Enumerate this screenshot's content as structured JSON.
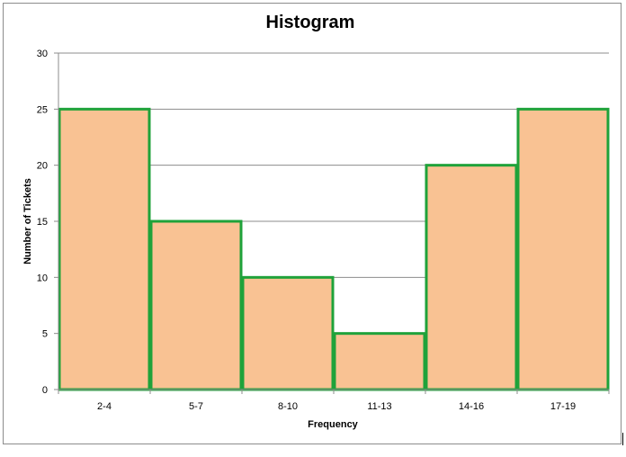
{
  "chart_data": {
    "type": "bar",
    "title": "Histogram",
    "xlabel": "Frequency",
    "ylabel": "Number of Tickets",
    "categories": [
      "2-4",
      "5-7",
      "8-10",
      "11-13",
      "14-16",
      "17-19"
    ],
    "values": [
      25,
      15,
      10,
      5,
      20,
      25
    ],
    "ylim": [
      0,
      30
    ],
    "yticks": [
      0,
      5,
      10,
      15,
      20,
      25,
      30
    ],
    "grid": true,
    "legend": "none",
    "colors": {
      "bar_fill": "#f9c293",
      "bar_edge": "#1fa23a",
      "grid": "#8c8c8c",
      "axis": "#8c8c8c"
    }
  }
}
